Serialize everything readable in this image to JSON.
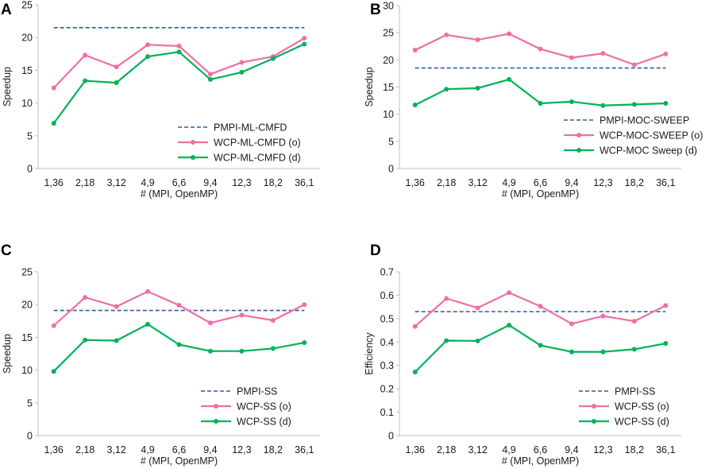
{
  "chart_data": [
    {
      "panel_label": "A",
      "type": "line",
      "title": "",
      "xlabel": "# (MPI, OpenMP)",
      "ylabel": "Speedup",
      "ylim": [
        0,
        25
      ],
      "yticks": [
        0,
        5,
        10,
        15,
        20,
        25
      ],
      "categories": [
        "1,36",
        "2,18",
        "3,12",
        "4,9",
        "6,6",
        "9,4",
        "12,3",
        "18,2",
        "36,1"
      ],
      "legend_position": "bottom-right",
      "series": [
        {
          "name": "PMPI-ML-CMFD",
          "style": "dashed",
          "color": "#2e5c9e",
          "values": [
            21.5,
            21.5,
            21.5,
            21.5,
            21.5,
            21.5,
            21.5,
            21.5,
            21.5
          ]
        },
        {
          "name": "WCP-ML-CMFD (o)",
          "style": "marker",
          "color": "#f06fa5",
          "values": [
            12.3,
            17.3,
            15.5,
            18.9,
            18.7,
            14.4,
            16.2,
            17.1,
            19.9
          ]
        },
        {
          "name": "WCP-ML-CMFD (d)",
          "style": "marker",
          "color": "#00b25a",
          "values": [
            6.9,
            13.4,
            13.1,
            17.1,
            17.8,
            13.6,
            14.7,
            16.8,
            19.0
          ]
        }
      ]
    },
    {
      "panel_label": "B",
      "type": "line",
      "title": "",
      "xlabel": "# (MPI, OpenMP)",
      "ylabel": "Speedup",
      "ylim": [
        0,
        30
      ],
      "yticks": [
        0,
        5,
        10,
        15,
        20,
        25,
        30
      ],
      "categories": [
        "1,36",
        "2,18",
        "3,12",
        "4,9",
        "6,6",
        "9,4",
        "12,3",
        "18,2",
        "36,1"
      ],
      "legend_position": "bottom-right",
      "series": [
        {
          "name": "PMPI-MOC-SWEEP",
          "style": "dashed",
          "color": "#2e5c9e",
          "values": [
            18.5,
            18.5,
            18.5,
            18.5,
            18.5,
            18.5,
            18.5,
            18.5,
            18.5
          ]
        },
        {
          "name": "WCP-MOC-SWEEP (o)",
          "style": "marker",
          "color": "#f06fa5",
          "values": [
            21.8,
            24.6,
            23.7,
            24.8,
            22.0,
            20.4,
            21.2,
            19.1,
            21.1
          ]
        },
        {
          "name": "WCP-MOC Sweep (d)",
          "style": "marker",
          "color": "#00b25a",
          "values": [
            11.7,
            14.6,
            14.8,
            16.4,
            12.0,
            12.3,
            11.6,
            11.8,
            12.0
          ]
        }
      ]
    },
    {
      "panel_label": "C",
      "type": "line",
      "title": "",
      "xlabel": "# (MPI, OpenMP)",
      "ylabel": "Speedup",
      "ylim": [
        0,
        25
      ],
      "yticks": [
        0,
        5,
        10,
        15,
        20,
        25
      ],
      "categories": [
        "1,36",
        "2,18",
        "3,12",
        "4,9",
        "6,6",
        "9,4",
        "12,3",
        "18,2",
        "36,1"
      ],
      "legend_position": "bottom-right",
      "series": [
        {
          "name": "PMPI-SS",
          "style": "dashed",
          "color": "#2e5c9e",
          "values": [
            19.1,
            19.1,
            19.1,
            19.1,
            19.1,
            19.1,
            19.1,
            19.1,
            19.1
          ]
        },
        {
          "name": "WCP-SS (o)",
          "style": "marker",
          "color": "#f06fa5",
          "values": [
            16.8,
            21.1,
            19.7,
            22.0,
            19.9,
            17.2,
            18.4,
            17.6,
            20.0
          ]
        },
        {
          "name": "WCP-SS (d)",
          "style": "marker",
          "color": "#00b25a",
          "values": [
            9.8,
            14.6,
            14.5,
            17.0,
            13.9,
            12.9,
            12.9,
            13.3,
            14.2
          ]
        }
      ]
    },
    {
      "panel_label": "D",
      "type": "line",
      "title": "",
      "xlabel": "# (MPI, OpenMP)",
      "ylabel": "Efficiency",
      "ylim": [
        0,
        0.7
      ],
      "yticks": [
        0,
        0.1,
        0.2,
        0.3,
        0.4,
        0.5,
        0.6,
        0.7
      ],
      "categories": [
        "1,36",
        "2,18",
        "3,12",
        "4,9",
        "6,6",
        "9,4",
        "12,3",
        "18,2",
        "36,1"
      ],
      "legend_position": "bottom-right",
      "series": [
        {
          "name": "PMPI-SS",
          "style": "dashed",
          "color": "#2e5c9e",
          "values": [
            0.53,
            0.53,
            0.53,
            0.53,
            0.53,
            0.53,
            0.53,
            0.53,
            0.53
          ]
        },
        {
          "name": "WCP-SS (o)",
          "style": "marker",
          "color": "#f06fa5",
          "values": [
            0.467,
            0.586,
            0.546,
            0.611,
            0.553,
            0.478,
            0.511,
            0.489,
            0.556
          ]
        },
        {
          "name": "WCP-SS (d)",
          "style": "marker",
          "color": "#00b25a",
          "values": [
            0.272,
            0.406,
            0.405,
            0.472,
            0.386,
            0.358,
            0.358,
            0.369,
            0.394
          ]
        }
      ]
    }
  ]
}
